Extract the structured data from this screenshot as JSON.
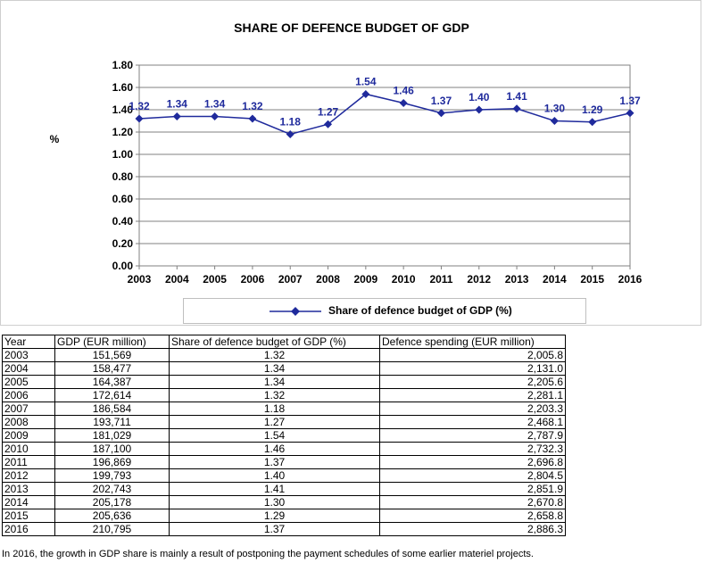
{
  "chart_data": {
    "type": "line",
    "title": "SHARE OF DEFENCE BUDGET OF GDP",
    "ylabel": "%",
    "xlabel": "",
    "x": [
      "2003",
      "2004",
      "2005",
      "2006",
      "2007",
      "2008",
      "2009",
      "2010",
      "2011",
      "2012",
      "2013",
      "2014",
      "2015",
      "2016"
    ],
    "series": [
      {
        "name": "Share of defence budget of GDP (%)",
        "values": [
          1.32,
          1.34,
          1.34,
          1.32,
          1.18,
          1.27,
          1.54,
          1.46,
          1.37,
          1.4,
          1.41,
          1.3,
          1.29,
          1.37
        ],
        "color": "#1f2a9c"
      }
    ],
    "data_labels": [
      "1.32",
      "1.34",
      "1.34",
      "1.32",
      "1.18",
      "1.27",
      "1.54",
      "1.46",
      "1.37",
      "1.40",
      "1.41",
      "1.30",
      "1.29",
      "1.37"
    ],
    "ylim": [
      0,
      1.8
    ],
    "yticks": [
      "0.00",
      "0.20",
      "0.40",
      "0.60",
      "0.80",
      "1.00",
      "1.20",
      "1.40",
      "1.60",
      "1.80"
    ],
    "grid": "horizontal",
    "legend_position": "bottom",
    "label_color": "#1f2a9c"
  },
  "table": {
    "headers": [
      "Year",
      "GDP (EUR million)",
      "Share of defence budget of GDP (%)",
      "Defence spending (EUR million)"
    ],
    "rows": [
      [
        "2003",
        "151,569",
        "1.32",
        "2,005.8"
      ],
      [
        "2004",
        "158,477",
        "1.34",
        "2,131.0"
      ],
      [
        "2005",
        "164,387",
        "1.34",
        "2,205.6"
      ],
      [
        "2006",
        "172,614",
        "1.32",
        "2,281.1"
      ],
      [
        "2007",
        "186,584",
        "1.18",
        "2,203.3"
      ],
      [
        "2008",
        "193,711",
        "1.27",
        "2,468.1"
      ],
      [
        "2009",
        "181,029",
        "1.54",
        "2,787.9"
      ],
      [
        "2010",
        "187,100",
        "1.46",
        "2,732.3"
      ],
      [
        "2011",
        "196,869",
        "1.37",
        "2,696.8"
      ],
      [
        "2012",
        "199,793",
        "1.40",
        "2,804.5"
      ],
      [
        "2013",
        "202,743",
        "1.41",
        "2,851.9"
      ],
      [
        "2014",
        "205,178",
        "1.30",
        "2,670.8"
      ],
      [
        "2015",
        "205,636",
        "1.29",
        "2,658.8"
      ],
      [
        "2016",
        "210,795",
        "1.37",
        "2,886.3"
      ]
    ]
  },
  "footnote": "In 2016, the growth in GDP share is mainly a result of postponing  the payment schedules of some earlier materiel projects."
}
